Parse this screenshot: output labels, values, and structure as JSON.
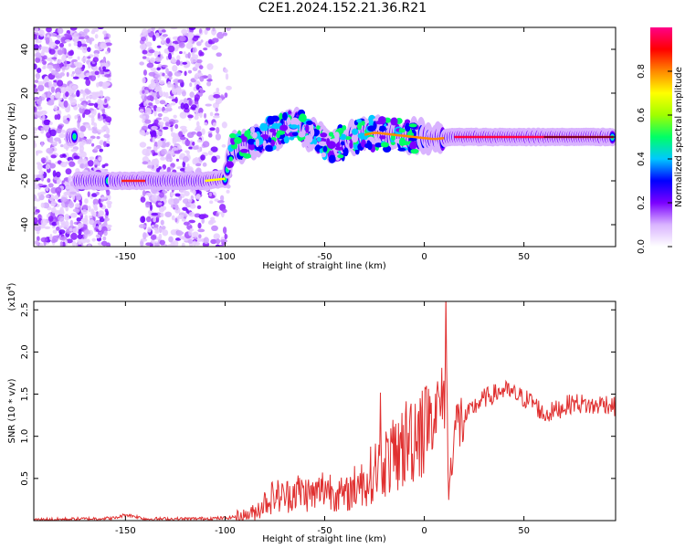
{
  "title": "C2E1.2024.152.21.36.R21",
  "chart_data": [
    {
      "type": "heatmap",
      "xlabel": "Height of straight line (km)",
      "ylabel": "Frequency (Hz)",
      "xlim": [
        -196,
        96
      ],
      "ylim": [
        -50,
        50
      ],
      "xticks": [
        -150,
        -100,
        -50,
        0,
        50
      ],
      "yticks": [
        -40,
        -20,
        0,
        20,
        40
      ],
      "colorbar": {
        "label": "Normalized spectral amplitude",
        "range": [
          0.0,
          1.0
        ],
        "ticks": [
          "0.0",
          "0.2",
          "0.4",
          "0.6",
          "0.8"
        ],
        "colors": [
          "#ffffff",
          "#d9b3ff",
          "#7b00ff",
          "#0000ff",
          "#00c8ff",
          "#00ff66",
          "#a0ff00",
          "#ffff00",
          "#ff8800",
          "#ff0000",
          "#ff0088"
        ]
      },
      "ridge": [
        {
          "x": -175,
          "y": -20
        },
        {
          "x": -160,
          "y": -20
        },
        {
          "x": -150,
          "y": -20
        },
        {
          "x": -140,
          "y": -20
        },
        {
          "x": -120,
          "y": -20
        },
        {
          "x": -110,
          "y": -20
        },
        {
          "x": -100,
          "y": -19
        },
        {
          "x": -96,
          "y": -5
        },
        {
          "x": -85,
          "y": -2
        },
        {
          "x": -75,
          "y": 2
        },
        {
          "x": -65,
          "y": 6
        },
        {
          "x": -55,
          "y": 0
        },
        {
          "x": -45,
          "y": -4
        },
        {
          "x": -35,
          "y": 0
        },
        {
          "x": -25,
          "y": 2
        },
        {
          "x": -15,
          "y": 1
        },
        {
          "x": -5,
          "y": 0
        },
        {
          "x": 5,
          "y": -1
        },
        {
          "x": 15,
          "y": 0
        },
        {
          "x": 30,
          "y": 0
        },
        {
          "x": 50,
          "y": 0
        },
        {
          "x": 70,
          "y": 0
        },
        {
          "x": 95,
          "y": 0
        }
      ]
    },
    {
      "type": "line",
      "xlabel": "Height of straight line (km)",
      "ylabel": "SNR (10 * v/v)",
      "yscale_note": "(x10",
      "yscale_exp": "4",
      "yscale_close": ")",
      "xlim": [
        -196,
        96
      ],
      "ylim": [
        0,
        2.6
      ],
      "xticks": [
        -150,
        -100,
        -50,
        0,
        50
      ],
      "yticks": [
        "0.5",
        "1.0",
        "1.5",
        "2.0",
        "2.5"
      ],
      "series_color": "#e03030",
      "x": [
        -196,
        -170,
        -155,
        -150,
        -145,
        -140,
        -120,
        -100,
        -90,
        -85,
        -80,
        -75,
        -70,
        -65,
        -60,
        -55,
        -50,
        -45,
        -40,
        -35,
        -30,
        -25,
        -20,
        -15,
        -10,
        -5,
        0,
        5,
        10,
        11,
        12,
        15,
        20,
        25,
        30,
        35,
        40,
        45,
        50,
        55,
        60,
        65,
        70,
        75,
        80,
        85,
        90,
        96
      ],
      "y": [
        0.01,
        0.02,
        0.03,
        0.07,
        0.05,
        0.02,
        0.02,
        0.03,
        0.06,
        0.1,
        0.22,
        0.3,
        0.28,
        0.35,
        0.33,
        0.3,
        0.4,
        0.35,
        0.28,
        0.4,
        0.45,
        0.6,
        0.7,
        0.75,
        0.9,
        1.05,
        1.2,
        1.3,
        1.4,
        2.62,
        0.25,
        1.1,
        1.2,
        1.35,
        1.45,
        1.5,
        1.55,
        1.5,
        1.45,
        1.4,
        1.25,
        1.3,
        1.35,
        1.4,
        1.38,
        1.35,
        1.4,
        1.35
      ]
    }
  ]
}
